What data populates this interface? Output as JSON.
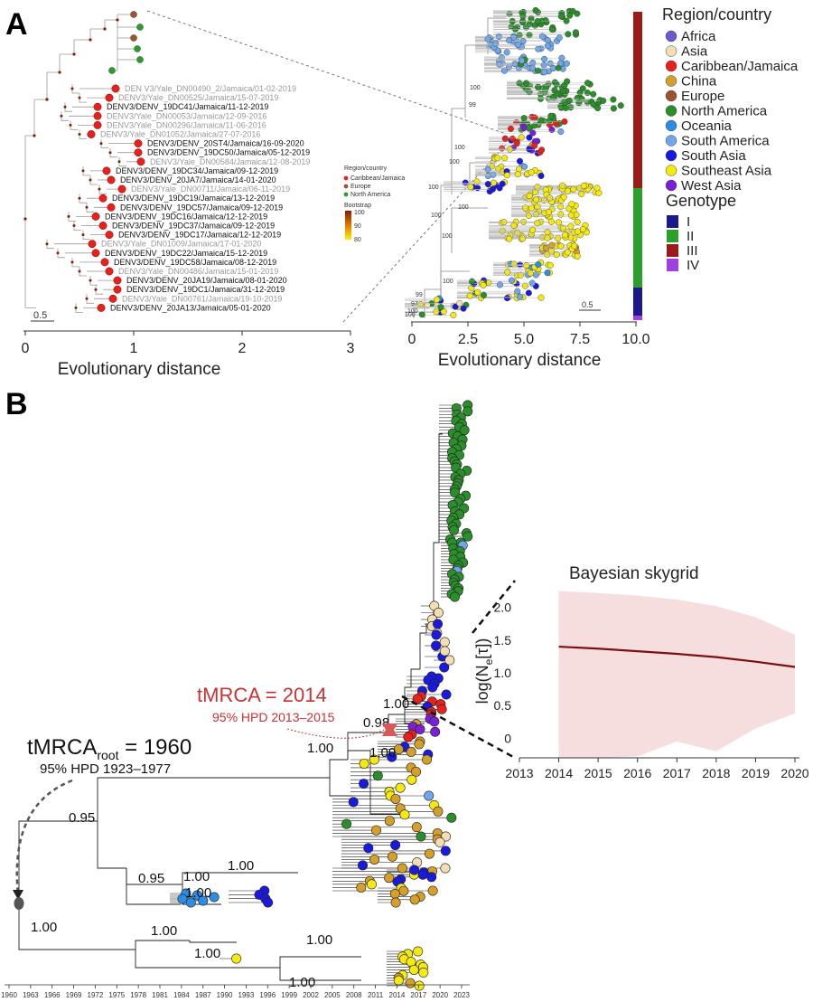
{
  "panels": {
    "a": "A",
    "b": "B"
  },
  "panelA": {
    "tips": [
      {
        "label": "DEN V3/Yale_DN00490_2/Jamaica/01-02-2019",
        "gray": true
      },
      {
        "label": "DENV3/Yale_DN00525/Jamaica/15-07-2019",
        "gray": true
      },
      {
        "label": "DENV3/DENV_19DC41/Jamaica/11-12-2019",
        "gray": false
      },
      {
        "label": "DENV3/Yale_DN00053/Jamaica/12-09-2016",
        "gray": true
      },
      {
        "label": "DENV3/Yale_DN00296/Jamaica/11-06-2016",
        "gray": true
      },
      {
        "label": "DENV3/Yale_DN01052/Jamaica/27-07-2016",
        "gray": true
      },
      {
        "label": "DENV3/DENV_20ST4/Jamaica/16-09-2020",
        "gray": false
      },
      {
        "label": "DENV3/DENV_19DC50/Jamaica/05-12-2019",
        "gray": false
      },
      {
        "label": "DENV3/Yale_DN00584/Jamaica/12-08-2019",
        "gray": true
      },
      {
        "label": "DENV3/DENV_19DC34/Jamaica/09-12-2019",
        "gray": false
      },
      {
        "label": "DENV3/DENV_20JA7/Jamaica/14-01-2020",
        "gray": false
      },
      {
        "label": "DENV3/Yale_DN00711/Jamaica/06-11-2019",
        "gray": true
      },
      {
        "label": "DENV3/DENV_19DC19/Jamaica/13-12-2019",
        "gray": false
      },
      {
        "label": "DENV3/DENV_19DC57/Jamaica/09-12-2019",
        "gray": false
      },
      {
        "label": "DENV3/DENV_19DC16/Jamaica/12-12-2019",
        "gray": false
      },
      {
        "label": "DENV3/DENV_19DC37/Jamaica/09-12-2019",
        "gray": false
      },
      {
        "label": "DENV3/DENV_19DC17/Jamaica/12-12-2019",
        "gray": false
      },
      {
        "label": "DENV3/Yale_DN01009/Jamaica/17-01-2020",
        "gray": true
      },
      {
        "label": "DENV3/DENV_19DC22/Jamaica/15-12-2019",
        "gray": false
      },
      {
        "label": "DENV3/DENV_19DC58/Jamaica/08-12-2019",
        "gray": false
      },
      {
        "label": "DENV3/Yale_DN00486/Jamaica/15-01-2019",
        "gray": true
      },
      {
        "label": "DENV3/DENV_20JA19/Jamaica/08-01-2020",
        "gray": false
      },
      {
        "label": "DENV3/DENV_19DC1/Jamaica/31-12-2019",
        "gray": false
      },
      {
        "label": "DENV3/Yale_DN00761/Jamaica/19-10-2019",
        "gray": true
      },
      {
        "label": "DENV3/DENV_20JA13/Jamaica/05-01-2020",
        "gray": false
      }
    ],
    "mini_legend": {
      "title": "Region/country",
      "items": [
        {
          "label": "Caribbean/Jamaica",
          "color": "#e8211c"
        },
        {
          "label": "Europe",
          "color": "#a0522d"
        },
        {
          "label": "North America",
          "color": "#2a9d2a"
        }
      ],
      "bootstrap_title": "Bootstrap",
      "bootstrap_ticks": [
        "100",
        "90",
        "80"
      ]
    },
    "scale_left": "0.5",
    "scale_right": "0.5",
    "left_axis": {
      "ticks": [
        "0",
        "1",
        "2",
        "3"
      ],
      "title": "Evolutionary distance"
    },
    "right_axis": {
      "ticks": [
        "0",
        "2.5",
        "5.0",
        "7.5",
        "10.0"
      ],
      "title": "Evolutionary distance"
    },
    "bootstrap_labels": [
      "100",
      "99",
      "100",
      "100",
      "100",
      "100",
      "100",
      "100",
      "100",
      "99",
      "97",
      "100",
      "100"
    ]
  },
  "legend": {
    "region_title": "Region/country",
    "regions": [
      {
        "label": "Africa",
        "color": "#6a5acd"
      },
      {
        "label": "Asia",
        "color": "#f5deb3"
      },
      {
        "label": "Caribbean/Jamaica",
        "color": "#e8211c"
      },
      {
        "label": "China",
        "color": "#d4a02a"
      },
      {
        "label": "Europe",
        "color": "#a0522d"
      },
      {
        "label": "North America",
        "color": "#2a8f2a"
      },
      {
        "label": "Oceania",
        "color": "#2b8ee6"
      },
      {
        "label": "South America",
        "color": "#6fa7ea"
      },
      {
        "label": "South Asia",
        "color": "#1a1adf"
      },
      {
        "label": "Southeast Asia",
        "color": "#f5e90f"
      },
      {
        "label": "West Asia",
        "color": "#7b1fd6"
      }
    ],
    "genotype_title": "Genotype",
    "genotypes": [
      {
        "label": "I",
        "color": "#1a1a8c"
      },
      {
        "label": "II",
        "color": "#2ca02c"
      },
      {
        "label": "III",
        "color": "#9b1b1b"
      },
      {
        "label": "IV",
        "color": "#a040e0"
      }
    ]
  },
  "panelB": {
    "tmrca": {
      "text": "tMRCA = 2014",
      "hpd": "95% HPD 2013–2015",
      "color": "#c83232"
    },
    "tmrca_root": {
      "main": "tMRCA",
      "sub": "root",
      "value": " = 1960",
      "hpd": "95% HPD 1923–1977"
    },
    "node_labels": [
      "1.00",
      "1.00",
      "0.98",
      "1.00",
      "0.95",
      "0.95",
      "1.00",
      "1.00",
      "1.00",
      "1.00",
      "1.00",
      "1.00"
    ],
    "year_ticks": [
      "1960",
      "1963",
      "1966",
      "1969",
      "1972",
      "1975",
      "1978",
      "1981",
      "1984",
      "1987",
      "1990",
      "1993",
      "1996",
      "1999",
      "2002",
      "2005",
      "2008",
      "2011",
      "2014",
      "2017",
      "2020",
      "2023"
    ]
  },
  "skygrid": {
    "title": "Bayesian skygrid",
    "ylabel": "log(N",
    "ylabel_sub": "e",
    "ylabel_rest": "[τ])",
    "y_ticks": [
      "0",
      "0.5",
      "1.0",
      "1.5",
      "2.0"
    ],
    "chart_data": {
      "type": "area",
      "title": "Bayesian skygrid",
      "x": [
        2014,
        2015,
        2016,
        2017,
        2018,
        2019,
        2020
      ],
      "median": [
        1.4,
        1.37,
        1.33,
        1.29,
        1.24,
        1.17,
        1.09
      ],
      "upper": [
        2.25,
        2.22,
        2.18,
        2.12,
        2.02,
        1.85,
        1.58
      ],
      "lower": [
        -0.3,
        -0.3,
        -0.28,
        -0.05,
        -0.2,
        0.15,
        0.38
      ],
      "xlim": [
        2013,
        2020
      ],
      "ylim": [
        -0.3,
        2.3
      ],
      "line_color": "#7a1010",
      "band_color": "#f6dede"
    }
  }
}
